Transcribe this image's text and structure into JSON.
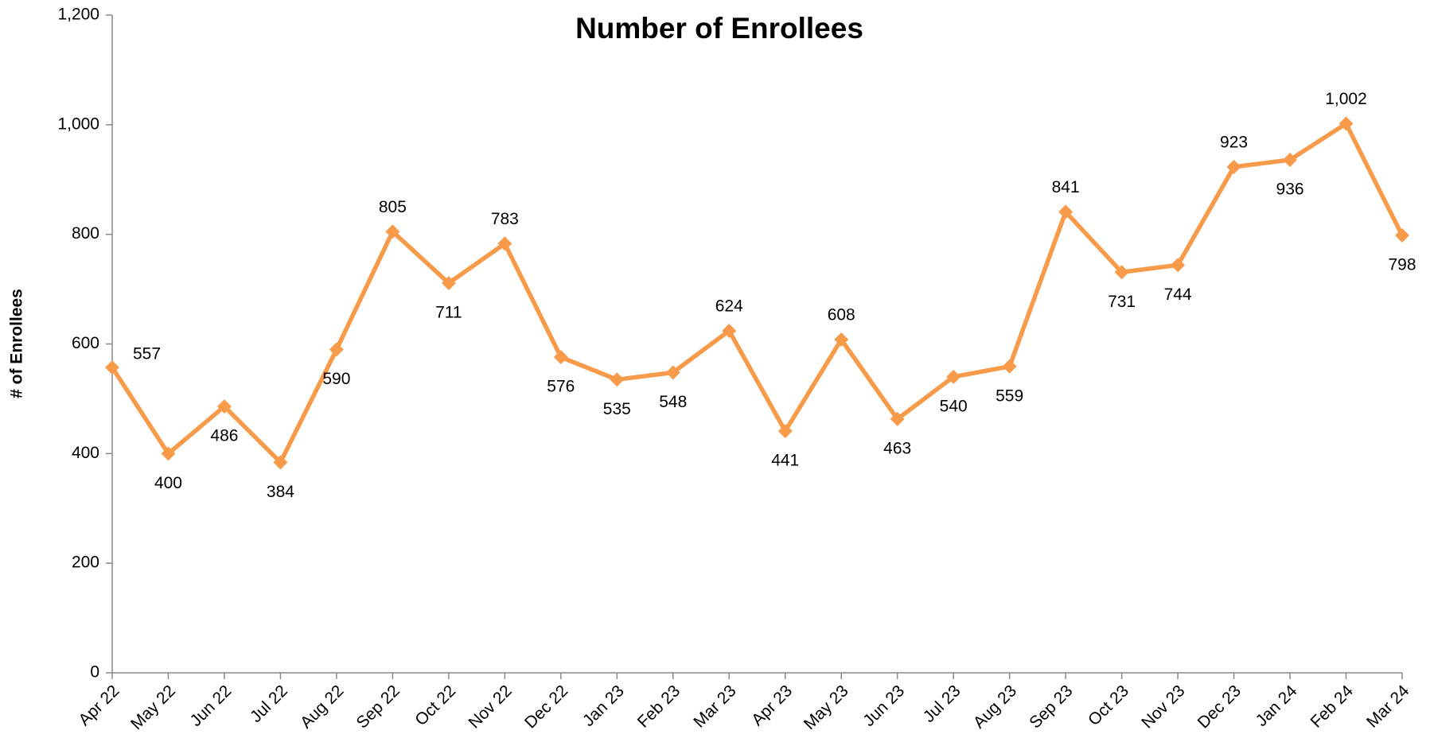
{
  "chart_data": {
    "type": "line",
    "title": "Number of Enrollees",
    "y_label": "# of Enrollees",
    "categories": [
      "Apr 22",
      "May 22",
      "Jun 22",
      "Jul 22",
      "Aug 22",
      "Sep 22",
      "Oct 22",
      "Nov 22",
      "Dec 22",
      "Jan 23",
      "Feb 23",
      "Mar 23",
      "Apr 23",
      "May 23",
      "Jun 23",
      "Jul 23",
      "Aug 23",
      "Sep 23",
      "Oct 23",
      "Nov 23",
      "Dec 23",
      "Jan 24",
      "Feb 24",
      "Mar 24"
    ],
    "series": [
      {
        "name": "Number of Enrollees",
        "color": "#f79a4a",
        "values": [
          557,
          400,
          486,
          384,
          590,
          805,
          711,
          783,
          576,
          535,
          548,
          624,
          441,
          608,
          463,
          540,
          559,
          841,
          731,
          744,
          923,
          936,
          1002,
          798
        ],
        "value_labels": [
          "557",
          "400",
          "486",
          "384",
          "590",
          "805",
          "711",
          "783",
          "576",
          "535",
          "548",
          "624",
          "441",
          "608",
          "463",
          "540",
          "559",
          "841",
          "731",
          "744",
          "923",
          "936",
          "1,002",
          "798"
        ]
      }
    ],
    "ylim": [
      0,
      1200
    ],
    "yticks": [
      0,
      200,
      400,
      600,
      800,
      {
        "value": 1000,
        "label": "1,000"
      },
      {
        "value": 1200,
        "label": "1,200"
      }
    ],
    "grid": false
  }
}
